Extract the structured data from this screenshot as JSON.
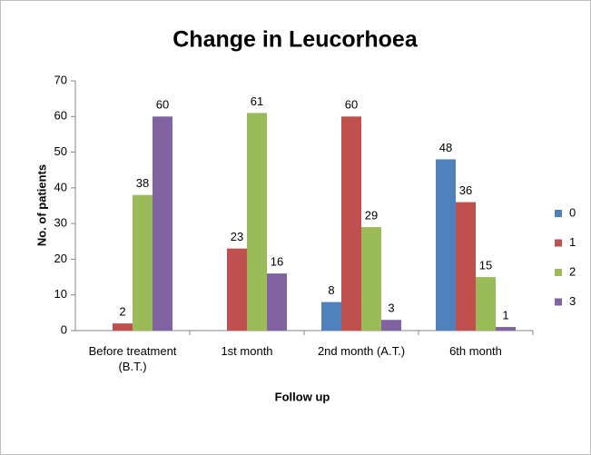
{
  "chart_data": {
    "type": "bar",
    "title": "Change in Leucorhoea",
    "x_label": "Follow up",
    "y_label": "No. of patients",
    "categories": [
      "Before treatment (B.T.)",
      "1st month",
      "2nd month (A.T.)",
      "6th month"
    ],
    "series": [
      {
        "name": "0",
        "color": "#4f81bd",
        "values": [
          null,
          null,
          8,
          48
        ]
      },
      {
        "name": "1",
        "color": "#c0504d",
        "values": [
          2,
          23,
          60,
          36
        ]
      },
      {
        "name": "2",
        "color": "#9bbb59",
        "values": [
          38,
          61,
          29,
          15
        ]
      },
      {
        "name": "3",
        "color": "#8064a2",
        "values": [
          60,
          16,
          3,
          1
        ]
      }
    ],
    "ylim": [
      0,
      70
    ],
    "yticks": [
      0,
      10,
      20,
      30,
      40,
      50,
      60,
      70
    ],
    "grid": false,
    "legend": "right"
  }
}
